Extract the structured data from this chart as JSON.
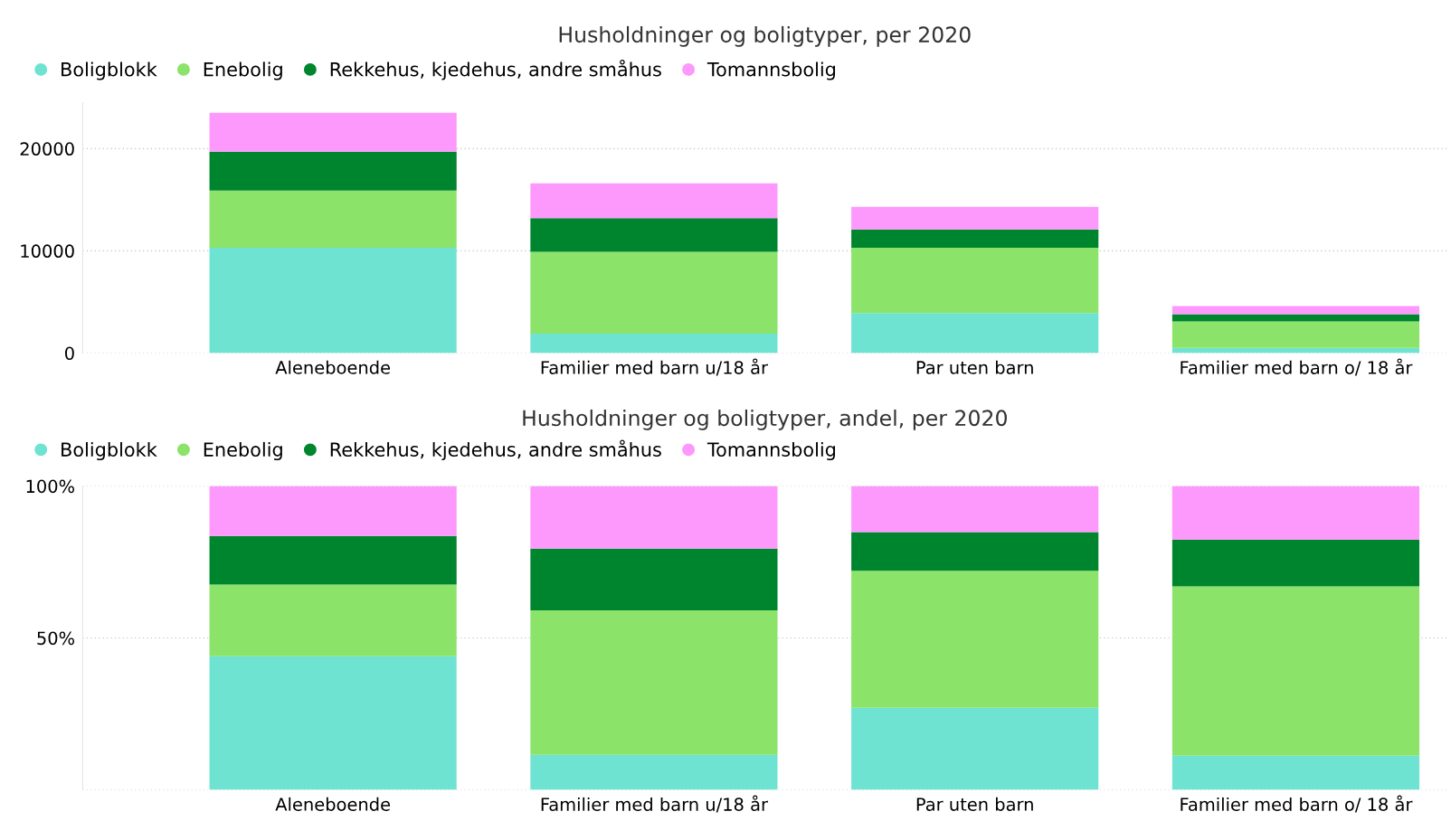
{
  "chart_data": [
    {
      "type": "bar",
      "stacked": true,
      "title": "Husholdninger og boligtyper, per 2020",
      "categories": [
        "Aleneboende",
        "Familier med barn u/18 år",
        "Par uten barn",
        "Familier med barn o/ 18 år"
      ],
      "series": [
        {
          "name": "Boligblokk",
          "color": "#6ee3d1",
          "values": [
            10300,
            1900,
            3900,
            500
          ]
        },
        {
          "name": "Enebolig",
          "color": "#8be36a",
          "values": [
            5600,
            8000,
            6400,
            2600
          ]
        },
        {
          "name": "Rekkehus, kjedehus, andre småhus",
          "color": "#00852f",
          "values": [
            3800,
            3300,
            1800,
            700
          ]
        },
        {
          "name": "Tomannsbolig",
          "color": "#fd98fd",
          "values": [
            3800,
            3400,
            2200,
            800
          ]
        }
      ],
      "ylim": [
        0,
        24500
      ],
      "yticks": [
        0,
        10000,
        20000
      ],
      "grid": "y",
      "legend": "top left"
    },
    {
      "type": "bar",
      "stacked": true,
      "title": "Husholdninger og boligtyper, andel, per 2020",
      "categories": [
        "Aleneboende",
        "Familier med barn u/18 år",
        "Par uten barn",
        "Familier med barn o/ 18 år"
      ],
      "series": [
        {
          "name": "Boligblokk",
          "color": "#6ee3d1",
          "values": [
            44,
            11.5,
            27,
            11.2
          ]
        },
        {
          "name": "Enebolig",
          "color": "#8be36a",
          "values": [
            23.6,
            47.6,
            45.1,
            55.8
          ]
        },
        {
          "name": "Rekkehus, kjedehus, andre småhus",
          "color": "#00852f",
          "values": [
            16,
            20.3,
            12.7,
            15.4
          ]
        },
        {
          "name": "Tomannsbolig",
          "color": "#fd98fd",
          "values": [
            16.4,
            20.6,
            15.2,
            17.6
          ]
        }
      ],
      "ylim": [
        0,
        100
      ],
      "yticks": [
        {
          "value": 0,
          "label": null
        },
        {
          "value": 50,
          "label": "50%"
        },
        {
          "value": 100,
          "label": "100%"
        }
      ],
      "grid": "y",
      "legend": "top left"
    }
  ]
}
